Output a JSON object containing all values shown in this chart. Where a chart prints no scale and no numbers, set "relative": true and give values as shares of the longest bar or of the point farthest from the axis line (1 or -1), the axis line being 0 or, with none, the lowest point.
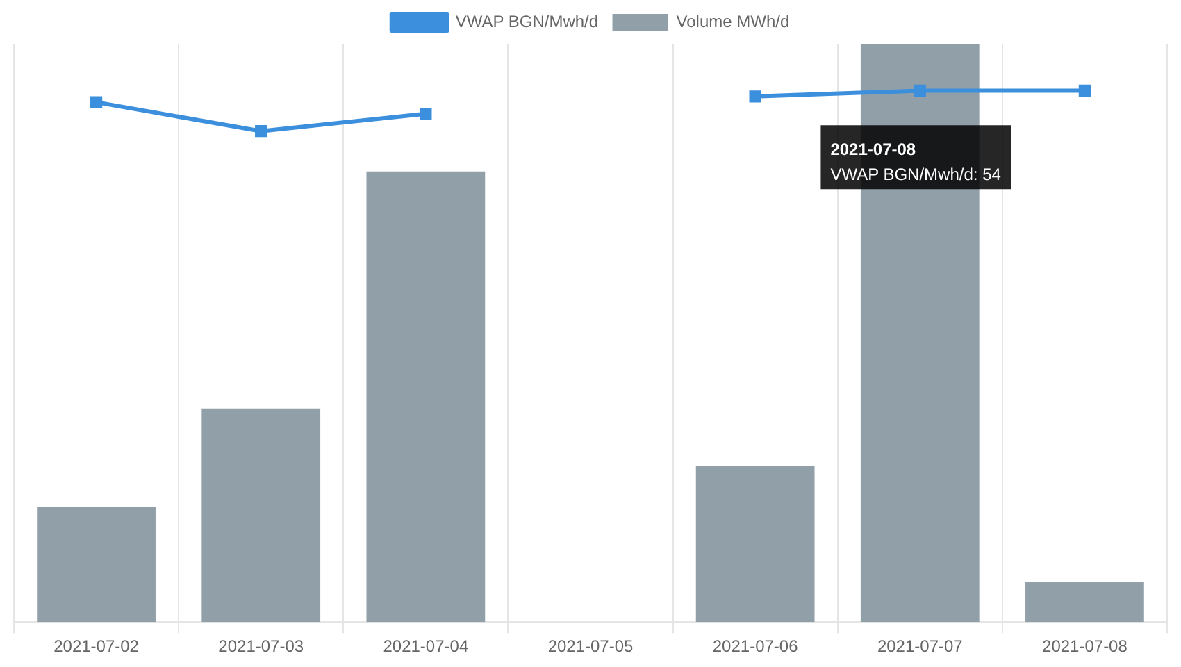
{
  "chart_data": {
    "type": "bar",
    "relative": true,
    "categories": [
      "2021-07-02",
      "2021-07-03",
      "2021-07-04",
      "2021-07-05",
      "2021-07-06",
      "2021-07-07",
      "2021-07-08"
    ],
    "series": [
      {
        "name": "VWAP BGN/Mwh/d",
        "type": "line",
        "color": "#3b8fdc",
        "values": [
          0.9,
          0.85,
          0.88,
          null,
          0.91,
          0.92,
          0.92
        ]
      },
      {
        "name": "Volume MWh/d",
        "color": "#919fa9",
        "values": [
          0.2,
          0.37,
          0.78,
          null,
          0.27,
          1,
          0.07
        ]
      }
    ],
    "legend": "top",
    "grid": "x",
    "marker": "square",
    "line_style": "solid",
    "annotations": [
      "2021-07-08",
      "VWAP BGN/Mwh/d: 54"
    ]
  }
}
